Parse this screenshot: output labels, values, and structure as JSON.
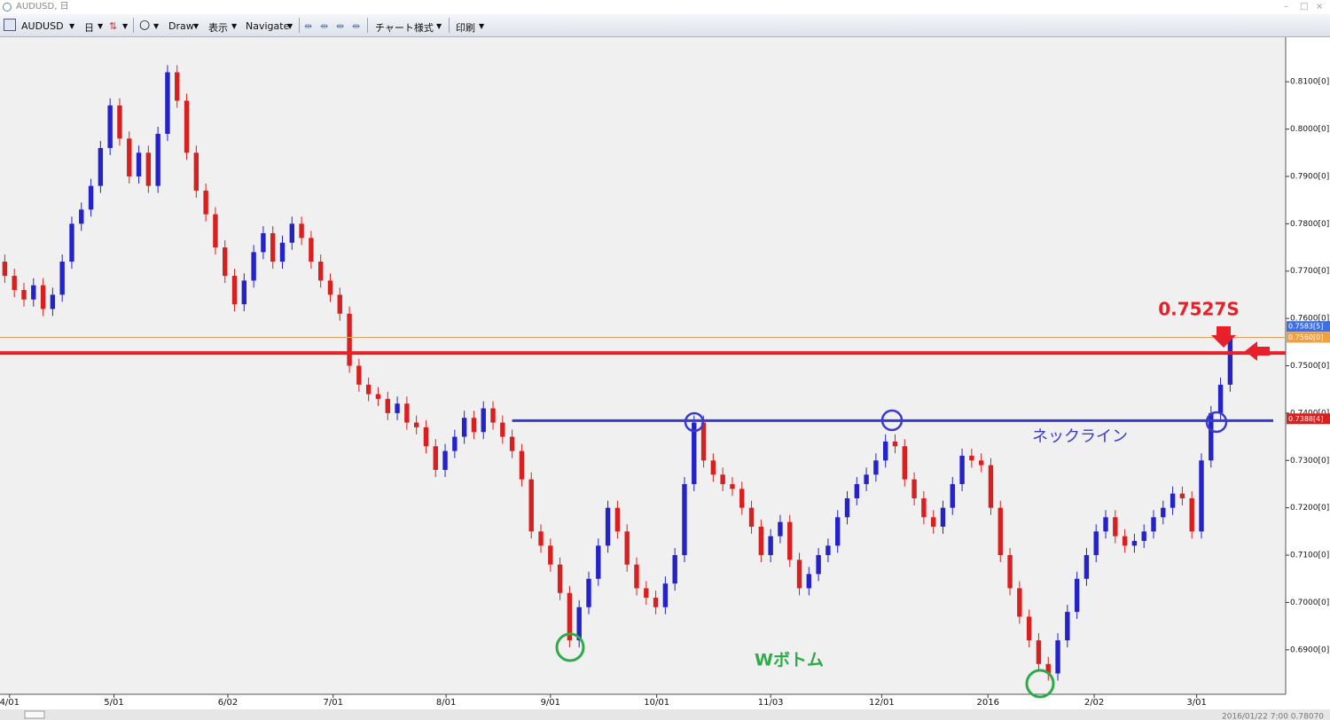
{
  "window": {
    "title": "AUDUSD, 日",
    "toolbar": [
      "AUDUSD",
      "日",
      "Draw",
      "表示",
      "Navigate",
      "チャート様式",
      "印刷"
    ],
    "status": "2016/01/22 7:00  0.78070"
  },
  "chart_data": {
    "type": "candlestick",
    "up_color": "#2323c8",
    "down_color": "#d82020",
    "xlim": [
      -0.5,
      133.8
    ],
    "ylim": [
      0.6806,
      0.8194
    ],
    "xticks": [
      {
        "value": 0.5,
        "label": "4/01"
      },
      {
        "value": 11.4,
        "label": "5/01"
      },
      {
        "value": 23.3,
        "label": "6/02"
      },
      {
        "value": 34.3,
        "label": "7/01"
      },
      {
        "value": 46.1,
        "label": "8/01"
      },
      {
        "value": 57,
        "label": "9/01"
      },
      {
        "value": 68.1,
        "label": "10/01"
      },
      {
        "value": 80,
        "label": "11/03"
      },
      {
        "value": 91.6,
        "label": "12/01"
      },
      {
        "value": 102.7,
        "label": "2016"
      },
      {
        "value": 113.8,
        "label": "2/02"
      },
      {
        "value": 124.5,
        "label": "3/01"
      }
    ],
    "yticks": [
      {
        "value": 0.69,
        "label": "0.6900[0]"
      },
      {
        "value": 0.7,
        "label": "0.7000[0]"
      },
      {
        "value": 0.71,
        "label": "0.7100[0]"
      },
      {
        "value": 0.72,
        "label": "0.7200[0]"
      },
      {
        "value": 0.73,
        "label": "0.7300[0]"
      },
      {
        "value": 0.74,
        "label": "0.7400[0]"
      },
      {
        "value": 0.75,
        "label": "0.7500[0]"
      },
      {
        "value": 0.76,
        "label": "0.7600[0]"
      },
      {
        "value": 0.77,
        "label": "0.7700[0]"
      },
      {
        "value": 0.78,
        "label": "0.7800[0]"
      },
      {
        "value": 0.79,
        "label": "0.7900[0]"
      },
      {
        "value": 0.8,
        "label": "0.8000[0]"
      },
      {
        "value": 0.81,
        "label": "0.8100[0]"
      }
    ],
    "candles": [
      [
        0.772,
        0.7735,
        0.7675,
        0.769
      ],
      [
        0.769,
        0.7705,
        0.7645,
        0.766
      ],
      [
        0.766,
        0.7675,
        0.7625,
        0.764
      ],
      [
        0.764,
        0.7685,
        0.7625,
        0.767
      ],
      [
        0.767,
        0.7685,
        0.7605,
        0.762
      ],
      [
        0.762,
        0.7665,
        0.7605,
        0.765
      ],
      [
        0.765,
        0.7735,
        0.7635,
        0.772
      ],
      [
        0.772,
        0.7815,
        0.7705,
        0.78
      ],
      [
        0.78,
        0.7845,
        0.7785,
        0.783
      ],
      [
        0.783,
        0.7895,
        0.7815,
        0.788
      ],
      [
        0.788,
        0.7975,
        0.7865,
        0.796
      ],
      [
        0.796,
        0.8065,
        0.7945,
        0.805
      ],
      [
        0.805,
        0.8065,
        0.7965,
        0.798
      ],
      [
        0.798,
        0.7995,
        0.7885,
        0.79
      ],
      [
        0.79,
        0.7965,
        0.7885,
        0.795
      ],
      [
        0.795,
        0.7965,
        0.7865,
        0.788
      ],
      [
        0.788,
        0.8005,
        0.7865,
        0.799
      ],
      [
        0.799,
        0.8135,
        0.7975,
        0.812
      ],
      [
        0.812,
        0.8135,
        0.8045,
        0.806
      ],
      [
        0.806,
        0.8075,
        0.7935,
        0.795
      ],
      [
        0.795,
        0.7965,
        0.7855,
        0.787
      ],
      [
        0.787,
        0.7885,
        0.7805,
        0.782
      ],
      [
        0.782,
        0.7835,
        0.7735,
        0.775
      ],
      [
        0.775,
        0.7765,
        0.7675,
        0.769
      ],
      [
        0.769,
        0.7705,
        0.7615,
        0.763
      ],
      [
        0.763,
        0.7695,
        0.7615,
        0.768
      ],
      [
        0.768,
        0.7755,
        0.7665,
        0.774
      ],
      [
        0.774,
        0.7795,
        0.7725,
        0.778
      ],
      [
        0.778,
        0.7795,
        0.7705,
        0.772
      ],
      [
        0.772,
        0.7775,
        0.7705,
        0.776
      ],
      [
        0.776,
        0.7815,
        0.7745,
        0.78
      ],
      [
        0.78,
        0.7815,
        0.7755,
        0.777
      ],
      [
        0.777,
        0.7785,
        0.7705,
        0.772
      ],
      [
        0.772,
        0.7735,
        0.7665,
        0.768
      ],
      [
        0.768,
        0.7695,
        0.7635,
        0.765
      ],
      [
        0.765,
        0.7665,
        0.7595,
        0.761
      ],
      [
        0.761,
        0.7625,
        0.7485,
        0.75
      ],
      [
        0.75,
        0.7515,
        0.7445,
        0.746
      ],
      [
        0.746,
        0.7475,
        0.7425,
        0.744
      ],
      [
        0.744,
        0.7455,
        0.7415,
        0.743
      ],
      [
        0.743,
        0.7445,
        0.7385,
        0.74
      ],
      [
        0.74,
        0.7435,
        0.7385,
        0.742
      ],
      [
        0.742,
        0.7435,
        0.7365,
        0.738
      ],
      [
        0.738,
        0.7395,
        0.7355,
        0.737
      ],
      [
        0.737,
        0.7385,
        0.7315,
        0.733
      ],
      [
        0.733,
        0.7345,
        0.7265,
        0.728
      ],
      [
        0.728,
        0.7335,
        0.7265,
        0.732
      ],
      [
        0.732,
        0.7365,
        0.7305,
        0.735
      ],
      [
        0.735,
        0.7405,
        0.7335,
        0.739
      ],
      [
        0.739,
        0.7405,
        0.7345,
        0.736
      ],
      [
        0.736,
        0.7425,
        0.7345,
        0.741
      ],
      [
        0.741,
        0.7425,
        0.7365,
        0.738
      ],
      [
        0.738,
        0.7395,
        0.7335,
        0.735
      ],
      [
        0.735,
        0.7365,
        0.7305,
        0.732
      ],
      [
        0.732,
        0.7335,
        0.7245,
        0.726
      ],
      [
        0.726,
        0.7275,
        0.7135,
        0.715
      ],
      [
        0.715,
        0.7165,
        0.7105,
        0.712
      ],
      [
        0.712,
        0.7135,
        0.7065,
        0.708
      ],
      [
        0.708,
        0.7095,
        0.7005,
        0.702
      ],
      [
        0.702,
        0.7035,
        0.6905,
        0.692
      ],
      [
        0.692,
        0.7005,
        0.6905,
        0.699
      ],
      [
        0.699,
        0.7065,
        0.6975,
        0.705
      ],
      [
        0.705,
        0.7135,
        0.7035,
        0.712
      ],
      [
        0.712,
        0.7215,
        0.7105,
        0.72
      ],
      [
        0.72,
        0.7215,
        0.7135,
        0.715
      ],
      [
        0.715,
        0.7165,
        0.7065,
        0.708
      ],
      [
        0.708,
        0.7095,
        0.7015,
        0.703
      ],
      [
        0.703,
        0.7045,
        0.6995,
        0.701
      ],
      [
        0.701,
        0.7025,
        0.6975,
        0.699
      ],
      [
        0.699,
        0.7055,
        0.6975,
        0.704
      ],
      [
        0.704,
        0.7115,
        0.7025,
        0.71
      ],
      [
        0.71,
        0.7265,
        0.7085,
        0.725
      ],
      [
        0.725,
        0.7395,
        0.7235,
        0.738
      ],
      [
        0.738,
        0.7395,
        0.7285,
        0.73
      ],
      [
        0.73,
        0.7315,
        0.7255,
        0.727
      ],
      [
        0.727,
        0.7285,
        0.7235,
        0.725
      ],
      [
        0.725,
        0.7265,
        0.7225,
        0.724
      ],
      [
        0.724,
        0.7255,
        0.7185,
        0.72
      ],
      [
        0.72,
        0.7215,
        0.7145,
        0.716
      ],
      [
        0.716,
        0.7175,
        0.7085,
        0.71
      ],
      [
        0.71,
        0.7155,
        0.7085,
        0.714
      ],
      [
        0.714,
        0.7185,
        0.7125,
        0.717
      ],
      [
        0.717,
        0.7185,
        0.7075,
        0.709
      ],
      [
        0.709,
        0.7105,
        0.7015,
        0.703
      ],
      [
        0.703,
        0.7075,
        0.7015,
        0.706
      ],
      [
        0.706,
        0.7115,
        0.7045,
        0.71
      ],
      [
        0.71,
        0.7135,
        0.7085,
        0.712
      ],
      [
        0.712,
        0.7195,
        0.7105,
        0.718
      ],
      [
        0.718,
        0.7235,
        0.7165,
        0.722
      ],
      [
        0.722,
        0.7265,
        0.7205,
        0.725
      ],
      [
        0.725,
        0.7285,
        0.7235,
        0.727
      ],
      [
        0.727,
        0.7315,
        0.7255,
        0.73
      ],
      [
        0.73,
        0.7355,
        0.7285,
        0.734
      ],
      [
        0.734,
        0.7355,
        0.7315,
        0.733
      ],
      [
        0.733,
        0.7345,
        0.7245,
        0.726
      ],
      [
        0.726,
        0.7275,
        0.7205,
        0.722
      ],
      [
        0.722,
        0.7235,
        0.7165,
        0.718
      ],
      [
        0.718,
        0.7195,
        0.7145,
        0.716
      ],
      [
        0.716,
        0.7215,
        0.7145,
        0.72
      ],
      [
        0.72,
        0.7265,
        0.7185,
        0.725
      ],
      [
        0.725,
        0.7325,
        0.7235,
        0.731
      ],
      [
        0.731,
        0.7325,
        0.7285,
        0.73
      ],
      [
        0.73,
        0.7315,
        0.7275,
        0.729
      ],
      [
        0.729,
        0.7305,
        0.7185,
        0.72
      ],
      [
        0.72,
        0.7215,
        0.7085,
        0.71
      ],
      [
        0.71,
        0.7115,
        0.7015,
        0.703
      ],
      [
        0.703,
        0.7045,
        0.6955,
        0.697
      ],
      [
        0.697,
        0.6985,
        0.6905,
        0.692
      ],
      [
        0.692,
        0.6935,
        0.6855,
        0.687
      ],
      [
        0.687,
        0.6885,
        0.6835,
        0.685
      ],
      [
        0.685,
        0.6935,
        0.6835,
        0.692
      ],
      [
        0.692,
        0.6995,
        0.6905,
        0.698
      ],
      [
        0.698,
        0.7065,
        0.6965,
        0.705
      ],
      [
        0.705,
        0.7115,
        0.7035,
        0.71
      ],
      [
        0.71,
        0.7165,
        0.7085,
        0.715
      ],
      [
        0.715,
        0.7195,
        0.7135,
        0.718
      ],
      [
        0.718,
        0.7195,
        0.7125,
        0.714
      ],
      [
        0.714,
        0.7155,
        0.7105,
        0.712
      ],
      [
        0.712,
        0.7145,
        0.7105,
        0.713
      ],
      [
        0.713,
        0.7165,
        0.7115,
        0.715
      ],
      [
        0.715,
        0.7195,
        0.7135,
        0.718
      ],
      [
        0.718,
        0.7215,
        0.7165,
        0.72
      ],
      [
        0.72,
        0.7245,
        0.7185,
        0.723
      ],
      [
        0.723,
        0.7245,
        0.7205,
        0.722
      ],
      [
        0.722,
        0.7235,
        0.7135,
        0.715
      ],
      [
        0.715,
        0.7315,
        0.7135,
        0.73
      ],
      [
        0.73,
        0.7415,
        0.7285,
        0.74
      ],
      [
        0.74,
        0.7475,
        0.7385,
        0.746
      ],
      [
        0.746,
        0.7583,
        0.7445,
        0.756
      ]
    ],
    "lines": [
      {
        "value": 0.7527,
        "color": "#e8202a",
        "width": 4,
        "label": "0.7527S"
      },
      {
        "value": 0.756,
        "color": "#e0a060",
        "width": 1
      }
    ],
    "neckline": {
      "value": 0.7384,
      "x": [
        53,
        132.5
      ],
      "color": "#3a3ad0",
      "label": "ネックライン"
    },
    "pattern_label": "Wボトム",
    "price_tags": [
      {
        "value": 0.7583,
        "label": "0.7583[5]",
        "color": "#3f6fe0"
      },
      {
        "value": 0.756,
        "label": "0.7560[0]",
        "color": "#f0a040"
      },
      {
        "value": 0.7388,
        "label": "0.7388[4]",
        "color": "#d82020"
      }
    ]
  }
}
